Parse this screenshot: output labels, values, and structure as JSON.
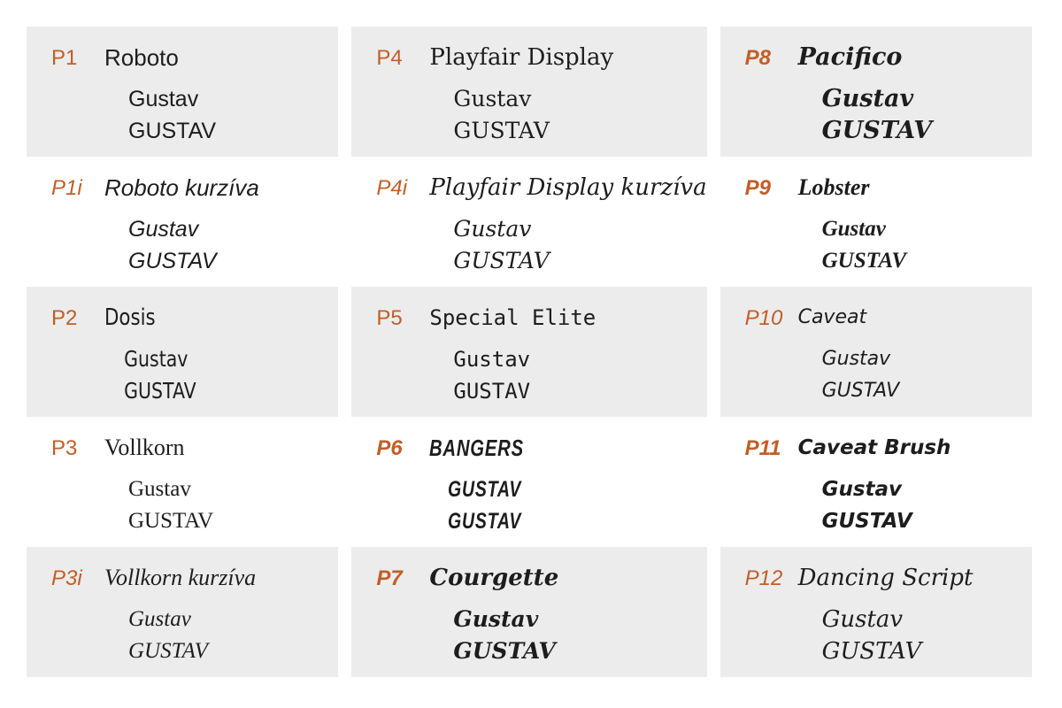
{
  "colors": {
    "accent": "#c25e27",
    "card_bg": "#ececec",
    "text": "#1d1d1d",
    "page_bg": "#ffffff"
  },
  "columns": [
    {
      "cards": [
        {
          "id": "P1",
          "font_name": "Roboto",
          "sample_mixed_case": "Gustav",
          "sample_upper_case": "GUSTAV",
          "style": "roboto"
        },
        {
          "id": "P1i",
          "font_name": "Roboto kurzíva",
          "sample_mixed_case": "Gustav",
          "sample_upper_case": "GUSTAV",
          "style": "roboto-italic"
        },
        {
          "id": "P2",
          "font_name": "Dosis",
          "sample_mixed_case": "Gustav",
          "sample_upper_case": "GUSTAV",
          "style": "dosis"
        },
        {
          "id": "P3",
          "font_name": "Vollkorn",
          "sample_mixed_case": "Gustav",
          "sample_upper_case": "GUSTAV",
          "style": "vollkorn"
        },
        {
          "id": "P3i",
          "font_name": "Vollkorn kurzíva",
          "sample_mixed_case": "Gustav",
          "sample_upper_case": "GUSTAV",
          "style": "vollkorn-italic"
        }
      ]
    },
    {
      "cards": [
        {
          "id": "P4",
          "font_name": "Playfair Display",
          "sample_mixed_case": "Gustav",
          "sample_upper_case": "GUSTAV",
          "style": "playfair"
        },
        {
          "id": "P4i",
          "font_name": "Playfair Display kurzíva",
          "sample_mixed_case": "Gustav",
          "sample_upper_case": "GUSTAV",
          "style": "playfair-italic"
        },
        {
          "id": "P5",
          "font_name": "Special Elite",
          "sample_mixed_case": "Gustav",
          "sample_upper_case": "GUSTAV",
          "style": "special-elite"
        },
        {
          "id": "P6",
          "font_name": "BANGERS",
          "sample_mixed_case": "GUSTAV",
          "sample_upper_case": "GUSTAV",
          "style": "bangers"
        },
        {
          "id": "P7",
          "font_name": "Courgette",
          "sample_mixed_case": "Gustav",
          "sample_upper_case": "GUSTAV",
          "style": "courgette"
        }
      ]
    },
    {
      "cards": [
        {
          "id": "P8",
          "font_name": "Pacifico",
          "sample_mixed_case": "Gustav",
          "sample_upper_case": "GUSTAV",
          "style": "pacifico"
        },
        {
          "id": "P9",
          "font_name": "Lobster",
          "sample_mixed_case": "Gustav",
          "sample_upper_case": "GUSTAV",
          "style": "lobster"
        },
        {
          "id": "P10",
          "font_name": "Caveat",
          "sample_mixed_case": "Gustav",
          "sample_upper_case": "GUSTAV",
          "style": "caveat"
        },
        {
          "id": "P11",
          "font_name": "Caveat Brush",
          "sample_mixed_case": "Gustav",
          "sample_upper_case": "GUSTAV",
          "style": "caveat-brush"
        },
        {
          "id": "P12",
          "font_name": "Dancing Script",
          "sample_mixed_case": "Gustav",
          "sample_upper_case": "GUSTAV",
          "style": "dancing-script"
        }
      ]
    }
  ]
}
